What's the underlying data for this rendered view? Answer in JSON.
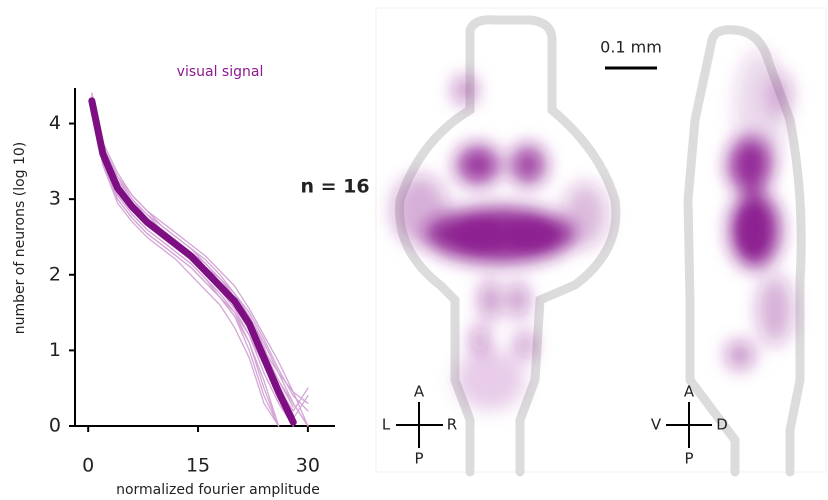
{
  "chart_data": {
    "type": "line",
    "title": "visual signal",
    "title_color": "#8b1a8f",
    "x_label": "normalized fourier amplitude",
    "y_label": "number of neurons (log 10)",
    "xlim": [
      -1.8,
      33.7
    ],
    "ylim": [
      0,
      4.47
    ],
    "xticks": [
      0,
      15,
      30
    ],
    "yticks": [
      0,
      1,
      2,
      3,
      4
    ],
    "x": [
      0.5,
      2,
      4,
      6,
      8,
      10,
      12,
      14,
      16,
      18,
      20,
      22,
      24,
      26,
      28,
      30
    ],
    "series": [
      {
        "color": "#d4a6d6",
        "linewidth": 1.3,
        "values": [
          4.4,
          3.7,
          3.3,
          3.0,
          2.8,
          2.65,
          2.5,
          2.35,
          2.2,
          2.0,
          1.75,
          1.4,
          1.0,
          0.6,
          0.3,
          0
        ]
      },
      {
        "color": "#d4a6d6",
        "linewidth": 1.3,
        "values": [
          4.2,
          3.5,
          3.0,
          2.75,
          2.55,
          2.4,
          2.25,
          2.1,
          1.9,
          1.7,
          1.45,
          1.1,
          0.6,
          0,
          null,
          null
        ]
      },
      {
        "color": "#d4a6d6",
        "linewidth": 1.3,
        "values": [
          4.3,
          3.65,
          3.25,
          3.0,
          2.8,
          2.6,
          2.45,
          2.3,
          2.1,
          1.95,
          1.7,
          1.45,
          1.05,
          0.5,
          0.2,
          0.5
        ]
      },
      {
        "color": "#d4a6d6",
        "linewidth": 1.3,
        "values": [
          4.25,
          3.55,
          3.1,
          2.85,
          2.65,
          2.5,
          2.35,
          2.2,
          2.0,
          1.8,
          1.55,
          1.2,
          0.7,
          0.3,
          0,
          null
        ]
      },
      {
        "color": "#d4a6d6",
        "linewidth": 1.3,
        "values": [
          4.35,
          3.6,
          3.2,
          2.95,
          2.75,
          2.6,
          2.45,
          2.3,
          2.1,
          1.9,
          1.7,
          1.4,
          1.0,
          0.7,
          0.3,
          0
        ]
      },
      {
        "color": "#d4a6d6",
        "linewidth": 1.3,
        "values": [
          4.3,
          3.55,
          3.05,
          2.8,
          2.6,
          2.45,
          2.3,
          2.15,
          1.95,
          1.75,
          1.5,
          1.1,
          0.5,
          0,
          null,
          null
        ]
      },
      {
        "color": "#d4a6d6",
        "linewidth": 1.3,
        "values": [
          4.4,
          3.75,
          3.35,
          3.05,
          2.85,
          2.7,
          2.55,
          2.4,
          2.25,
          2.05,
          1.85,
          1.55,
          1.2,
          0.85,
          0.45,
          0.3
        ]
      },
      {
        "color": "#d4a6d6",
        "linewidth": 1.3,
        "values": [
          4.2,
          3.45,
          2.95,
          2.7,
          2.5,
          2.35,
          2.2,
          2.0,
          1.8,
          1.6,
          1.3,
          0.9,
          0.3,
          0,
          null,
          null
        ]
      },
      {
        "color": "#d4a6d6",
        "linewidth": 1.3,
        "values": [
          4.3,
          3.6,
          3.2,
          2.9,
          2.7,
          2.55,
          2.4,
          2.25,
          2.05,
          1.85,
          1.6,
          1.3,
          0.85,
          0.5,
          0,
          null
        ]
      },
      {
        "color": "#d4a6d6",
        "linewidth": 1.3,
        "values": [
          4.35,
          3.7,
          3.25,
          3.0,
          2.75,
          2.6,
          2.45,
          2.3,
          2.15,
          1.95,
          1.75,
          1.45,
          1.1,
          0.7,
          0.45,
          0
        ]
      },
      {
        "color": "#d4a6d6",
        "linewidth": 1.3,
        "values": [
          4.25,
          3.5,
          3.05,
          2.8,
          2.6,
          2.45,
          2.3,
          2.15,
          1.95,
          1.7,
          1.45,
          1.0,
          0.4,
          0,
          null,
          null
        ]
      },
      {
        "color": "#d4a6d6",
        "linewidth": 1.3,
        "values": [
          4.3,
          3.6,
          3.15,
          2.9,
          2.7,
          2.55,
          2.4,
          2.25,
          2.05,
          1.85,
          1.65,
          1.35,
          0.95,
          0.6,
          0.25,
          null
        ]
      },
      {
        "color": "#d4a6d6",
        "linewidth": 1.3,
        "values": [
          4.4,
          3.7,
          3.3,
          3.05,
          2.85,
          2.65,
          2.5,
          2.35,
          2.15,
          1.95,
          1.75,
          1.5,
          1.15,
          0.75,
          0.4,
          0.2
        ]
      },
      {
        "color": "#d4a6d6",
        "linewidth": 1.3,
        "values": [
          4.2,
          3.5,
          3.0,
          2.75,
          2.55,
          2.4,
          2.25,
          2.1,
          1.9,
          1.7,
          1.5,
          1.2,
          0.8,
          0.35,
          0,
          null
        ]
      },
      {
        "color": "#d4a6d6",
        "linewidth": 1.3,
        "values": [
          4.3,
          3.65,
          3.2,
          2.95,
          2.75,
          2.6,
          2.45,
          2.3,
          2.1,
          1.9,
          1.7,
          1.4,
          1.0,
          0.55,
          0.15,
          null
        ]
      },
      {
        "color": "#d4a6d6",
        "linewidth": 1.3,
        "values": [
          4.35,
          3.6,
          3.15,
          2.9,
          2.7,
          2.5,
          2.35,
          2.2,
          2.0,
          1.8,
          1.6,
          1.3,
          0.85,
          0.4,
          0.1,
          0.4
        ]
      },
      {
        "color": "#7e0f83",
        "linewidth": 7,
        "values": [
          4.3,
          3.6,
          3.15,
          2.9,
          2.7,
          2.55,
          2.4,
          2.25,
          2.05,
          1.85,
          1.65,
          1.35,
          0.9,
          0.45,
          0.05,
          null
        ]
      }
    ],
    "annotations": {
      "count": "n = 16",
      "scale_bar": "0.1 mm",
      "compass_horizontal": {
        "top": "A",
        "bottom": "P",
        "left": "L",
        "right": "R"
      },
      "compass_sagittal": {
        "top": "A",
        "bottom": "P",
        "left": "V",
        "right": "D"
      }
    }
  }
}
